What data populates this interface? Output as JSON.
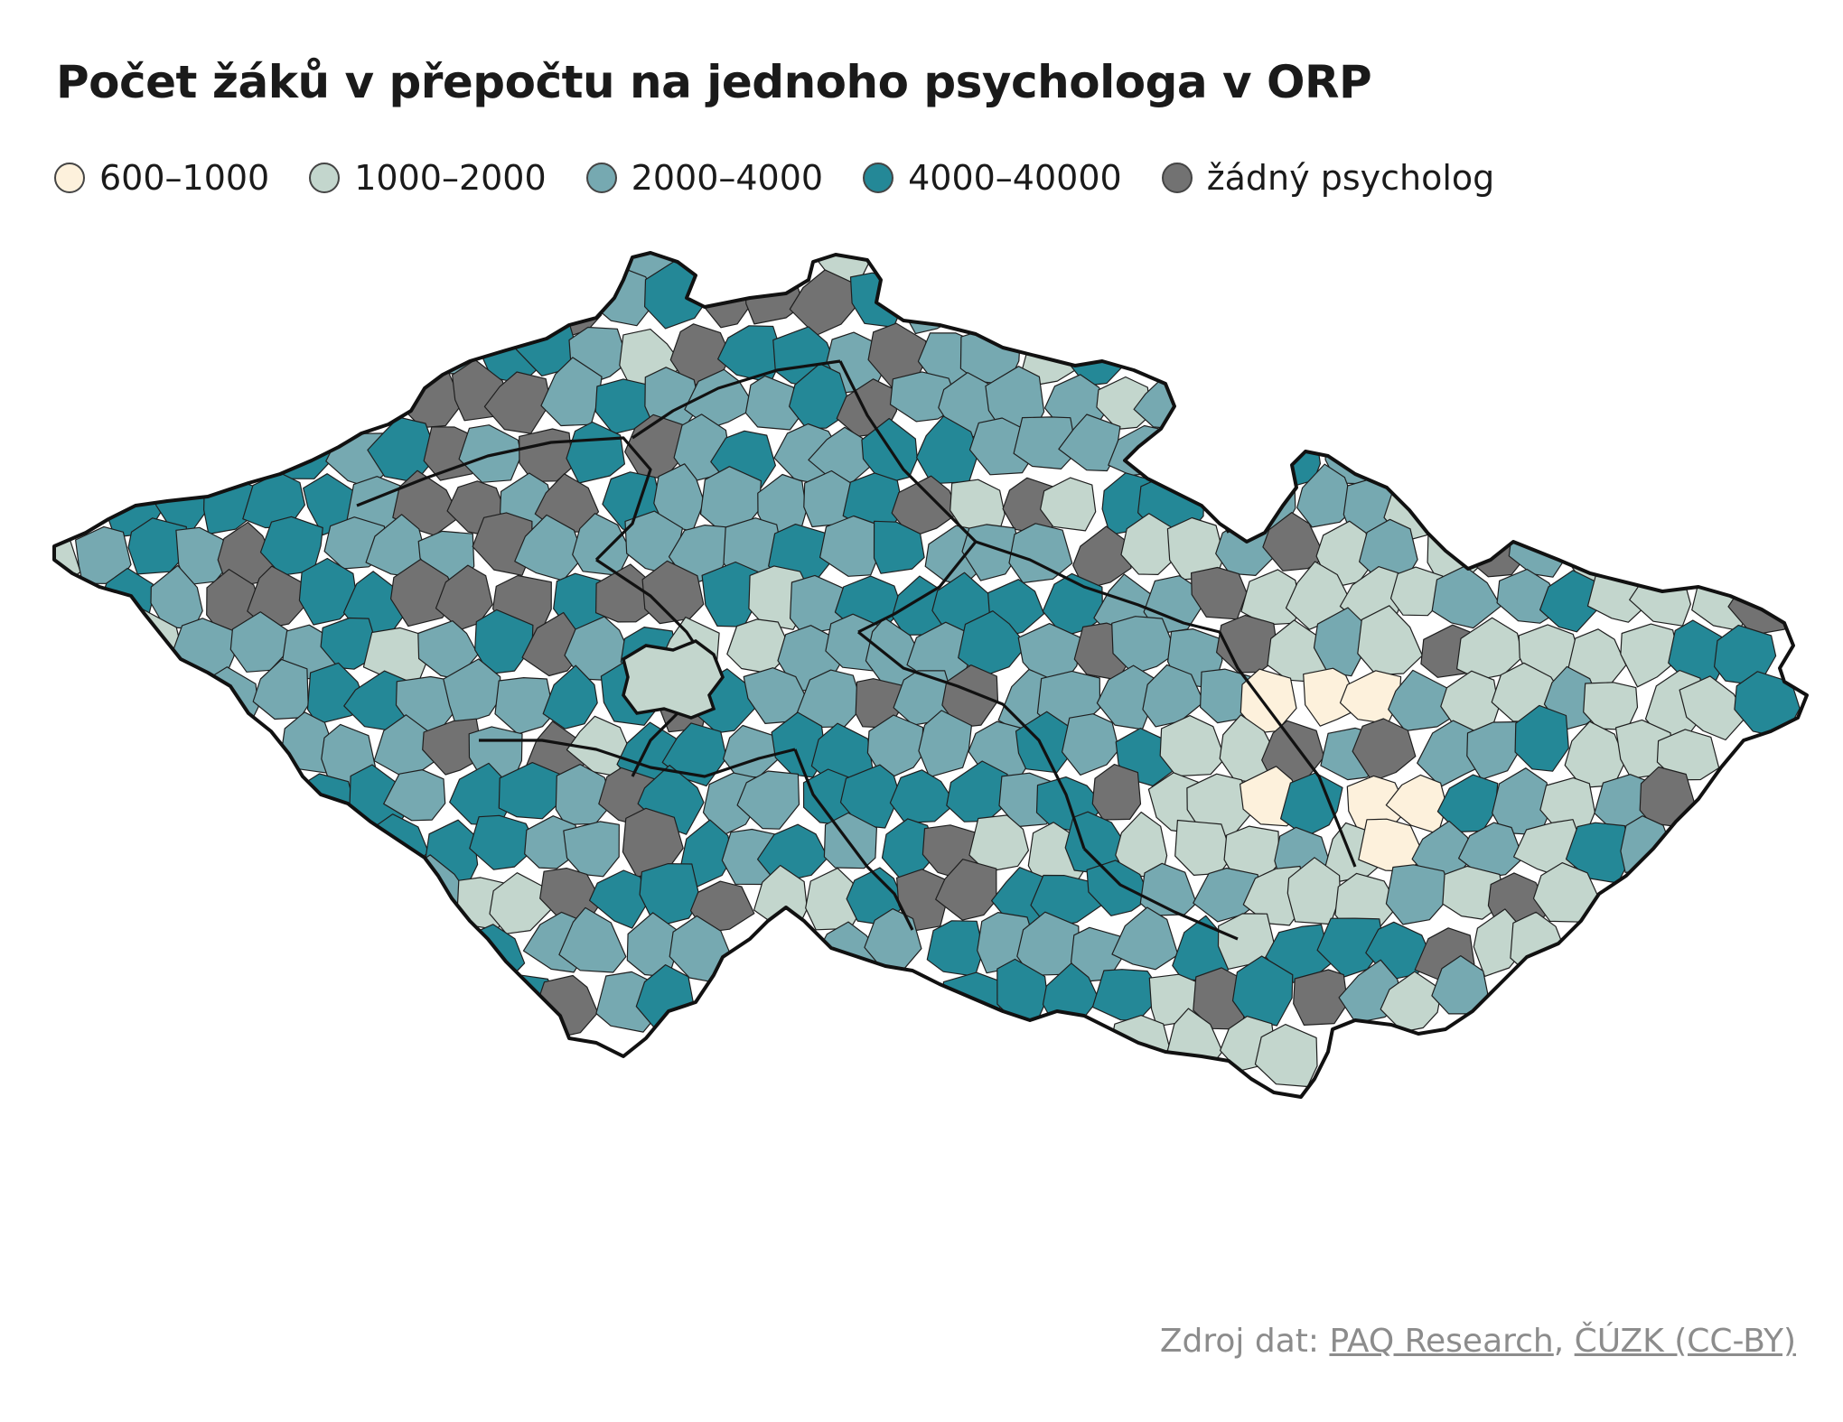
{
  "title": "Počet žáků v přepočtu na jednoho psychologa v ORP",
  "legend": [
    {
      "label": "600–1000",
      "color": "#fdf1dc"
    },
    {
      "label": "1000–2000",
      "color": "#c3d6cd"
    },
    {
      "label": "2000–4000",
      "color": "#76a9b1"
    },
    {
      "label": "4000–40000",
      "color": "#248897"
    },
    {
      "label": "žádný psycholog",
      "color": "#727272"
    }
  ],
  "source": {
    "prefix": "Zdroj dat: ",
    "link1": "PAQ Research",
    "separator": ", ",
    "link2": "ČÚZK (CC-BY)"
  }
}
